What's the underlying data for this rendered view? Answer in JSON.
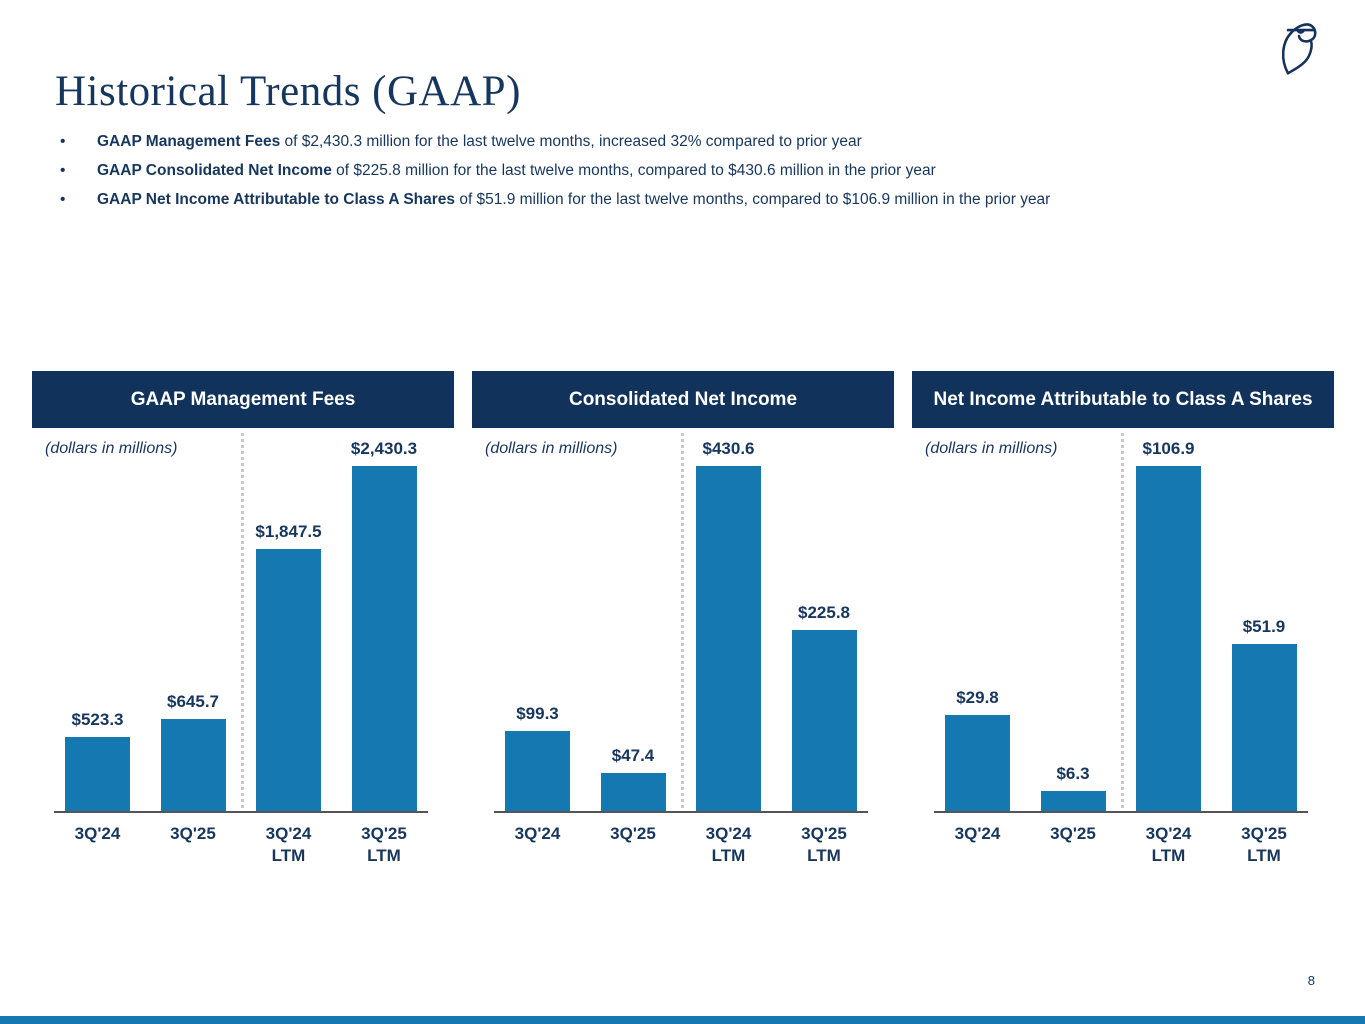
{
  "slide": {
    "title": "Historical Trends (GAAP)",
    "page_number": "8",
    "logo_icon": "blue-owl-owl-logo"
  },
  "bullets": [
    {
      "bold": "GAAP Management Fees",
      "rest": " of $2,430.3 million for the last twelve months, increased 32% compared to prior year"
    },
    {
      "bold": "GAAP Consolidated Net Income",
      "rest": " of $225.8 million for the last twelve months, compared to $430.6 million in the prior year"
    },
    {
      "bold": "GAAP Net Income Attributable to Class A Shares",
      "rest": " of $51.9 million for the last twelve months, compared to $106.9 million in the prior year"
    }
  ],
  "colors": {
    "navy": "#17365D",
    "header_bg": "#11325A",
    "bar_blue": "#1578B1",
    "axis": "#555555",
    "divider": "#C8C8C8"
  },
  "chart_data": [
    {
      "type": "bar",
      "title": "GAAP Management Fees",
      "note": "(dollars in millions)",
      "categories": [
        "3Q'24",
        "3Q'25",
        "3Q'24\nLTM",
        "3Q'25\nLTM"
      ],
      "values": [
        523.3,
        645.7,
        1847.5,
        2430.3
      ],
      "value_labels": [
        "$523.3",
        "$645.7",
        "$1,847.5",
        "$2,430.3"
      ],
      "ylim": [
        0,
        2430.3
      ],
      "grid": false,
      "divider_between": [
        "3Q'25",
        "3Q'24 LTM"
      ]
    },
    {
      "type": "bar",
      "title": "Consolidated Net Income",
      "note": "(dollars in millions)",
      "categories": [
        "3Q'24",
        "3Q'25",
        "3Q'24\nLTM",
        "3Q'25\nLTM"
      ],
      "values": [
        99.3,
        47.4,
        430.6,
        225.8
      ],
      "value_labels": [
        "$99.3",
        "$47.4",
        "$430.6",
        "$225.8"
      ],
      "ylim": [
        0,
        430.6
      ],
      "grid": false,
      "divider_between": [
        "3Q'25",
        "3Q'24 LTM"
      ]
    },
    {
      "type": "bar",
      "title": "Net Income Attributable to Class A Shares",
      "note": "(dollars in millions)",
      "categories": [
        "3Q'24",
        "3Q'25",
        "3Q'24\nLTM",
        "3Q'25\nLTM"
      ],
      "values": [
        29.8,
        6.3,
        106.9,
        51.9
      ],
      "value_labels": [
        "$29.8",
        "$6.3",
        "$106.9",
        "$51.9"
      ],
      "ylim": [
        0,
        106.9
      ],
      "grid": false,
      "divider_between": [
        "3Q'25",
        "3Q'24 LTM"
      ]
    }
  ]
}
